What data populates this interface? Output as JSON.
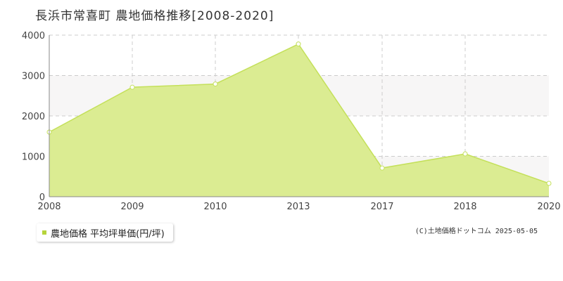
{
  "title": "長浜市常喜町 農地価格推移[2008-2020]",
  "colors": {
    "area_fill": "#dbec92",
    "line": "#c4e05a",
    "band": "#f7f6f6",
    "grid": "#cccccc",
    "marker_fill": "#ffffff"
  },
  "legend": {
    "label": "農地価格 平均坪単価(円/坪)",
    "marker_color": "#b6d43c"
  },
  "copyright": "(C)土地価格ドットコム 2025-05-05",
  "chart_data": {
    "type": "area",
    "x": [
      "2008",
      "2009",
      "2010",
      "2013",
      "2017",
      "2018",
      "2020"
    ],
    "series": [
      {
        "name": "農地価格 平均坪単価(円/坪)",
        "values": [
          1600,
          2710,
          2790,
          3780,
          710,
          1060,
          330
        ]
      }
    ],
    "y_ticks": [
      "0",
      "1000",
      "2000",
      "3000",
      "4000"
    ],
    "ylim": [
      0,
      4000
    ],
    "grid": true,
    "legend_position": "bottom-left"
  }
}
